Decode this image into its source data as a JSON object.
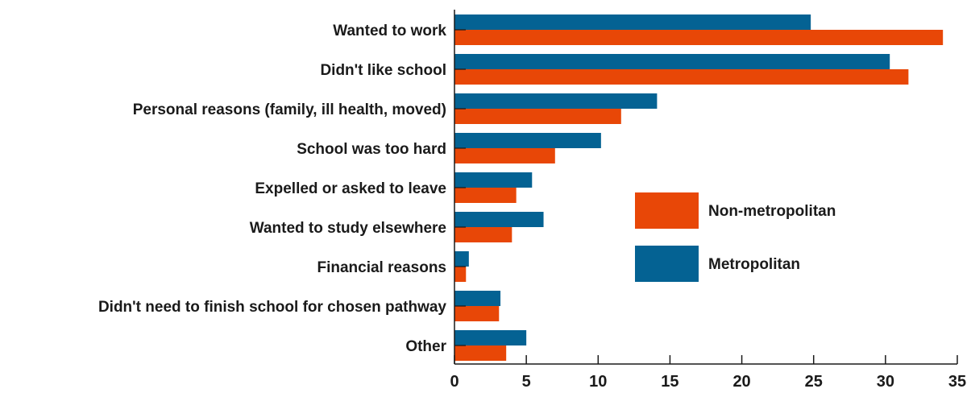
{
  "chart_data": {
    "type": "bar",
    "orientation": "horizontal",
    "categories": [
      "Wanted to work",
      "Didn't like school",
      "Personal reasons (family, ill health, moved)",
      "School was too hard",
      "Expelled or asked to leave",
      "Wanted to study elsewhere",
      "Financial reasons",
      "Didn't need to finish school for chosen pathway",
      "Other"
    ],
    "series": [
      {
        "name": "Metropolitan",
        "color": "#046293",
        "values": [
          24.8,
          30.3,
          14.1,
          10.2,
          5.4,
          6.2,
          1.0,
          3.2,
          5.0
        ]
      },
      {
        "name": "Non-metropolitan",
        "color": "#E84707",
        "values": [
          34.0,
          31.6,
          11.6,
          7.0,
          4.3,
          4.0,
          0.8,
          3.1,
          3.6
        ]
      }
    ],
    "xlim": [
      0,
      35
    ],
    "xticks": [
      0,
      5,
      10,
      15,
      20,
      25,
      30,
      35
    ],
    "xlabel": "",
    "ylabel": "",
    "title": "",
    "grid": false,
    "legend": {
      "position": "center-right",
      "entries": [
        "Non-metropolitan",
        "Metropolitan"
      ]
    }
  }
}
